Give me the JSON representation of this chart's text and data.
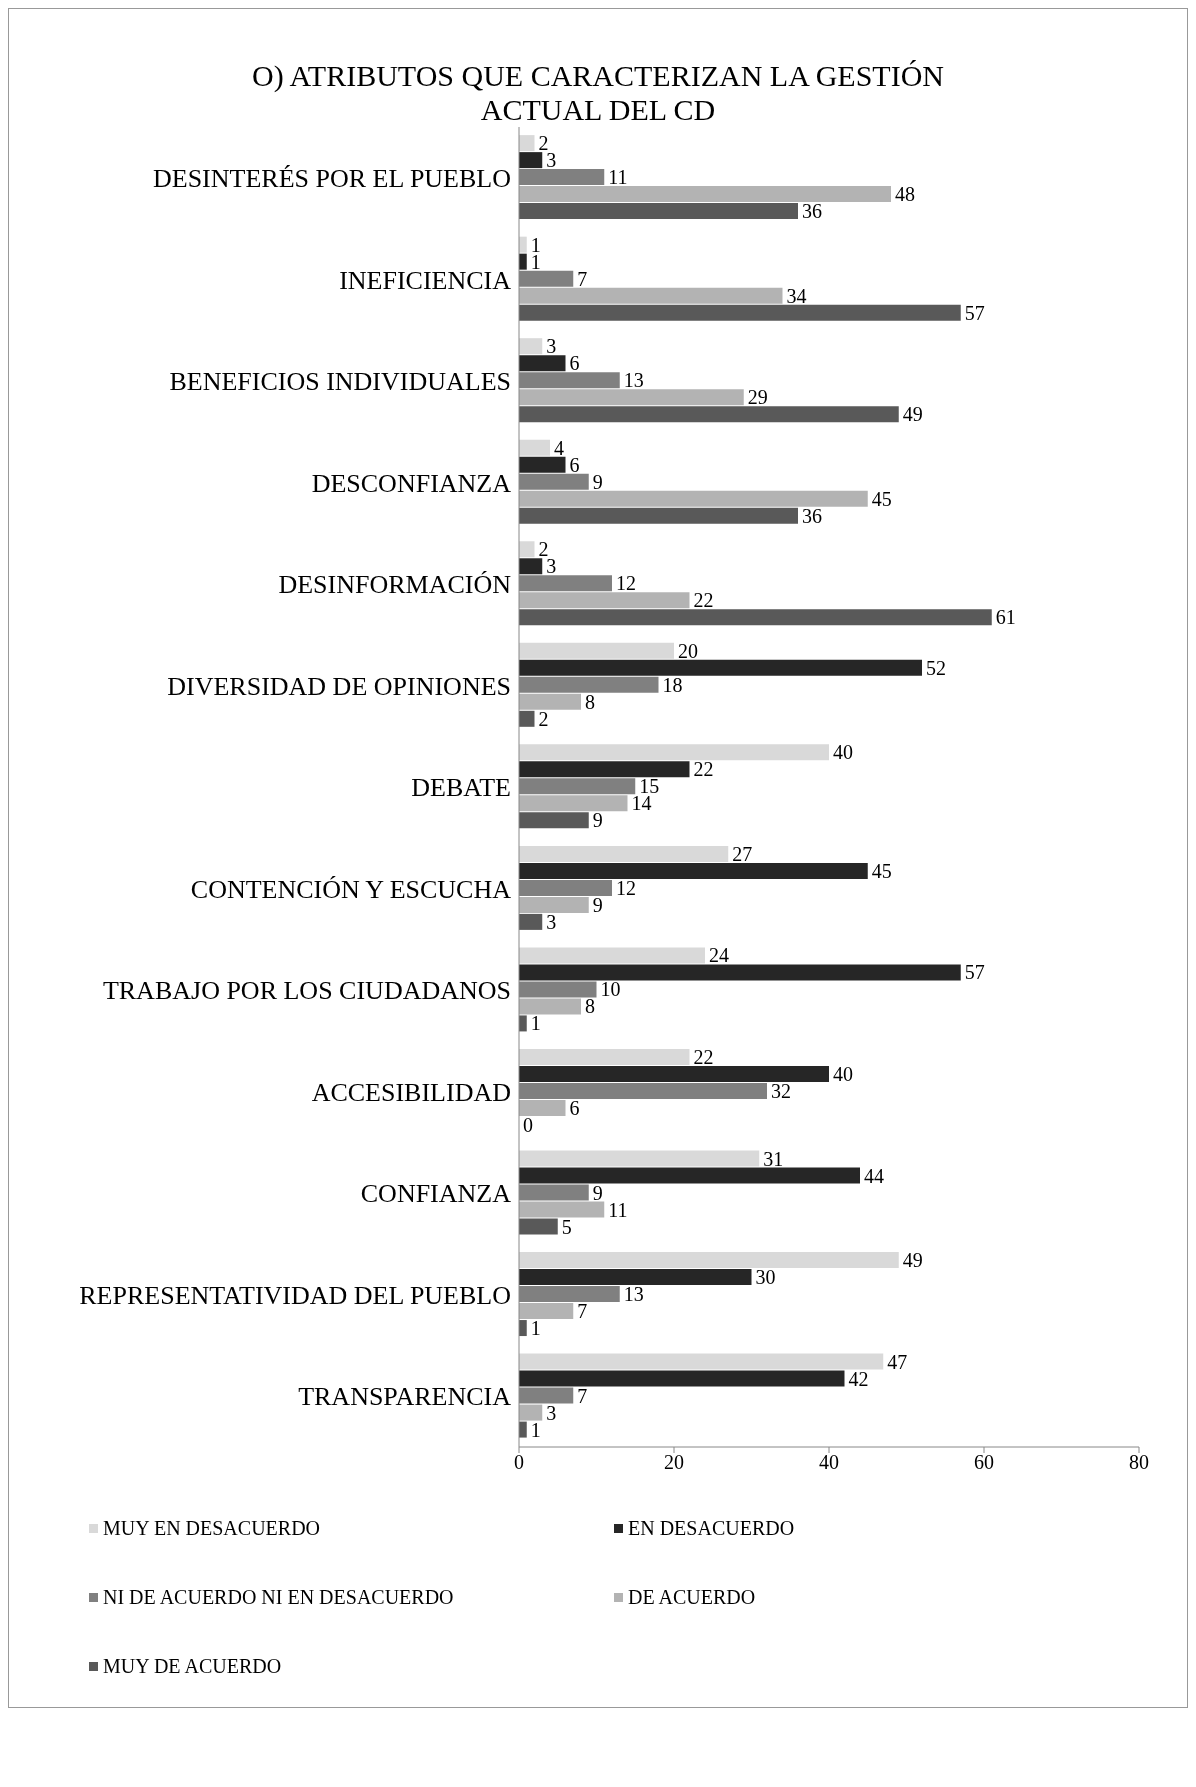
{
  "chart_data": {
    "type": "bar",
    "orientation": "horizontal",
    "title": "O) ATRIBUTOS QUE CARACTERIZAN LA GESTIÓN ACTUAL DEL CD",
    "categories": [
      "DESINTERÉS POR EL PUEBLO",
      "INEFICIENCIA",
      "BENEFICIOS INDIVIDUALES",
      "DESCONFIANZA",
      "DESINFORMACIÓN",
      "DIVERSIDAD DE OPINIONES",
      "DEBATE",
      "CONTENCIÓN Y ESCUCHA",
      "TRABAJO POR LOS CIUDADANOS",
      "ACCESIBILIDAD",
      "CONFIANZA",
      "REPRESENTATIVIDAD DEL PUEBLO",
      "TRANSPARENCIA"
    ],
    "series": [
      {
        "name": "MUY EN DESACUERDO",
        "color": "#d9d9d9",
        "values": [
          2,
          1,
          3,
          4,
          2,
          20,
          40,
          27,
          24,
          22,
          31,
          49,
          47
        ]
      },
      {
        "name": "EN DESACUERDO",
        "color": "#262626",
        "values": [
          3,
          1,
          6,
          6,
          3,
          52,
          22,
          45,
          57,
          40,
          44,
          30,
          42
        ]
      },
      {
        "name": "NI DE ACUERDO NI EN DESACUERDO",
        "color": "#808080",
        "values": [
          11,
          7,
          13,
          9,
          12,
          18,
          15,
          12,
          10,
          32,
          9,
          13,
          7
        ]
      },
      {
        "name": "DE ACUERDO",
        "color": "#b3b3b3",
        "values": [
          48,
          34,
          29,
          45,
          22,
          8,
          14,
          9,
          8,
          6,
          11,
          7,
          3
        ]
      },
      {
        "name": "MUY DE ACUERDO",
        "color": "#595959",
        "values": [
          36,
          57,
          49,
          36,
          61,
          2,
          9,
          3,
          1,
          0,
          5,
          1,
          1
        ]
      }
    ],
    "xlim": [
      0,
      80
    ],
    "xticks": [
      0,
      20,
      40,
      60,
      80
    ],
    "data_labels": true,
    "legend": "bottom",
    "grid": false
  }
}
